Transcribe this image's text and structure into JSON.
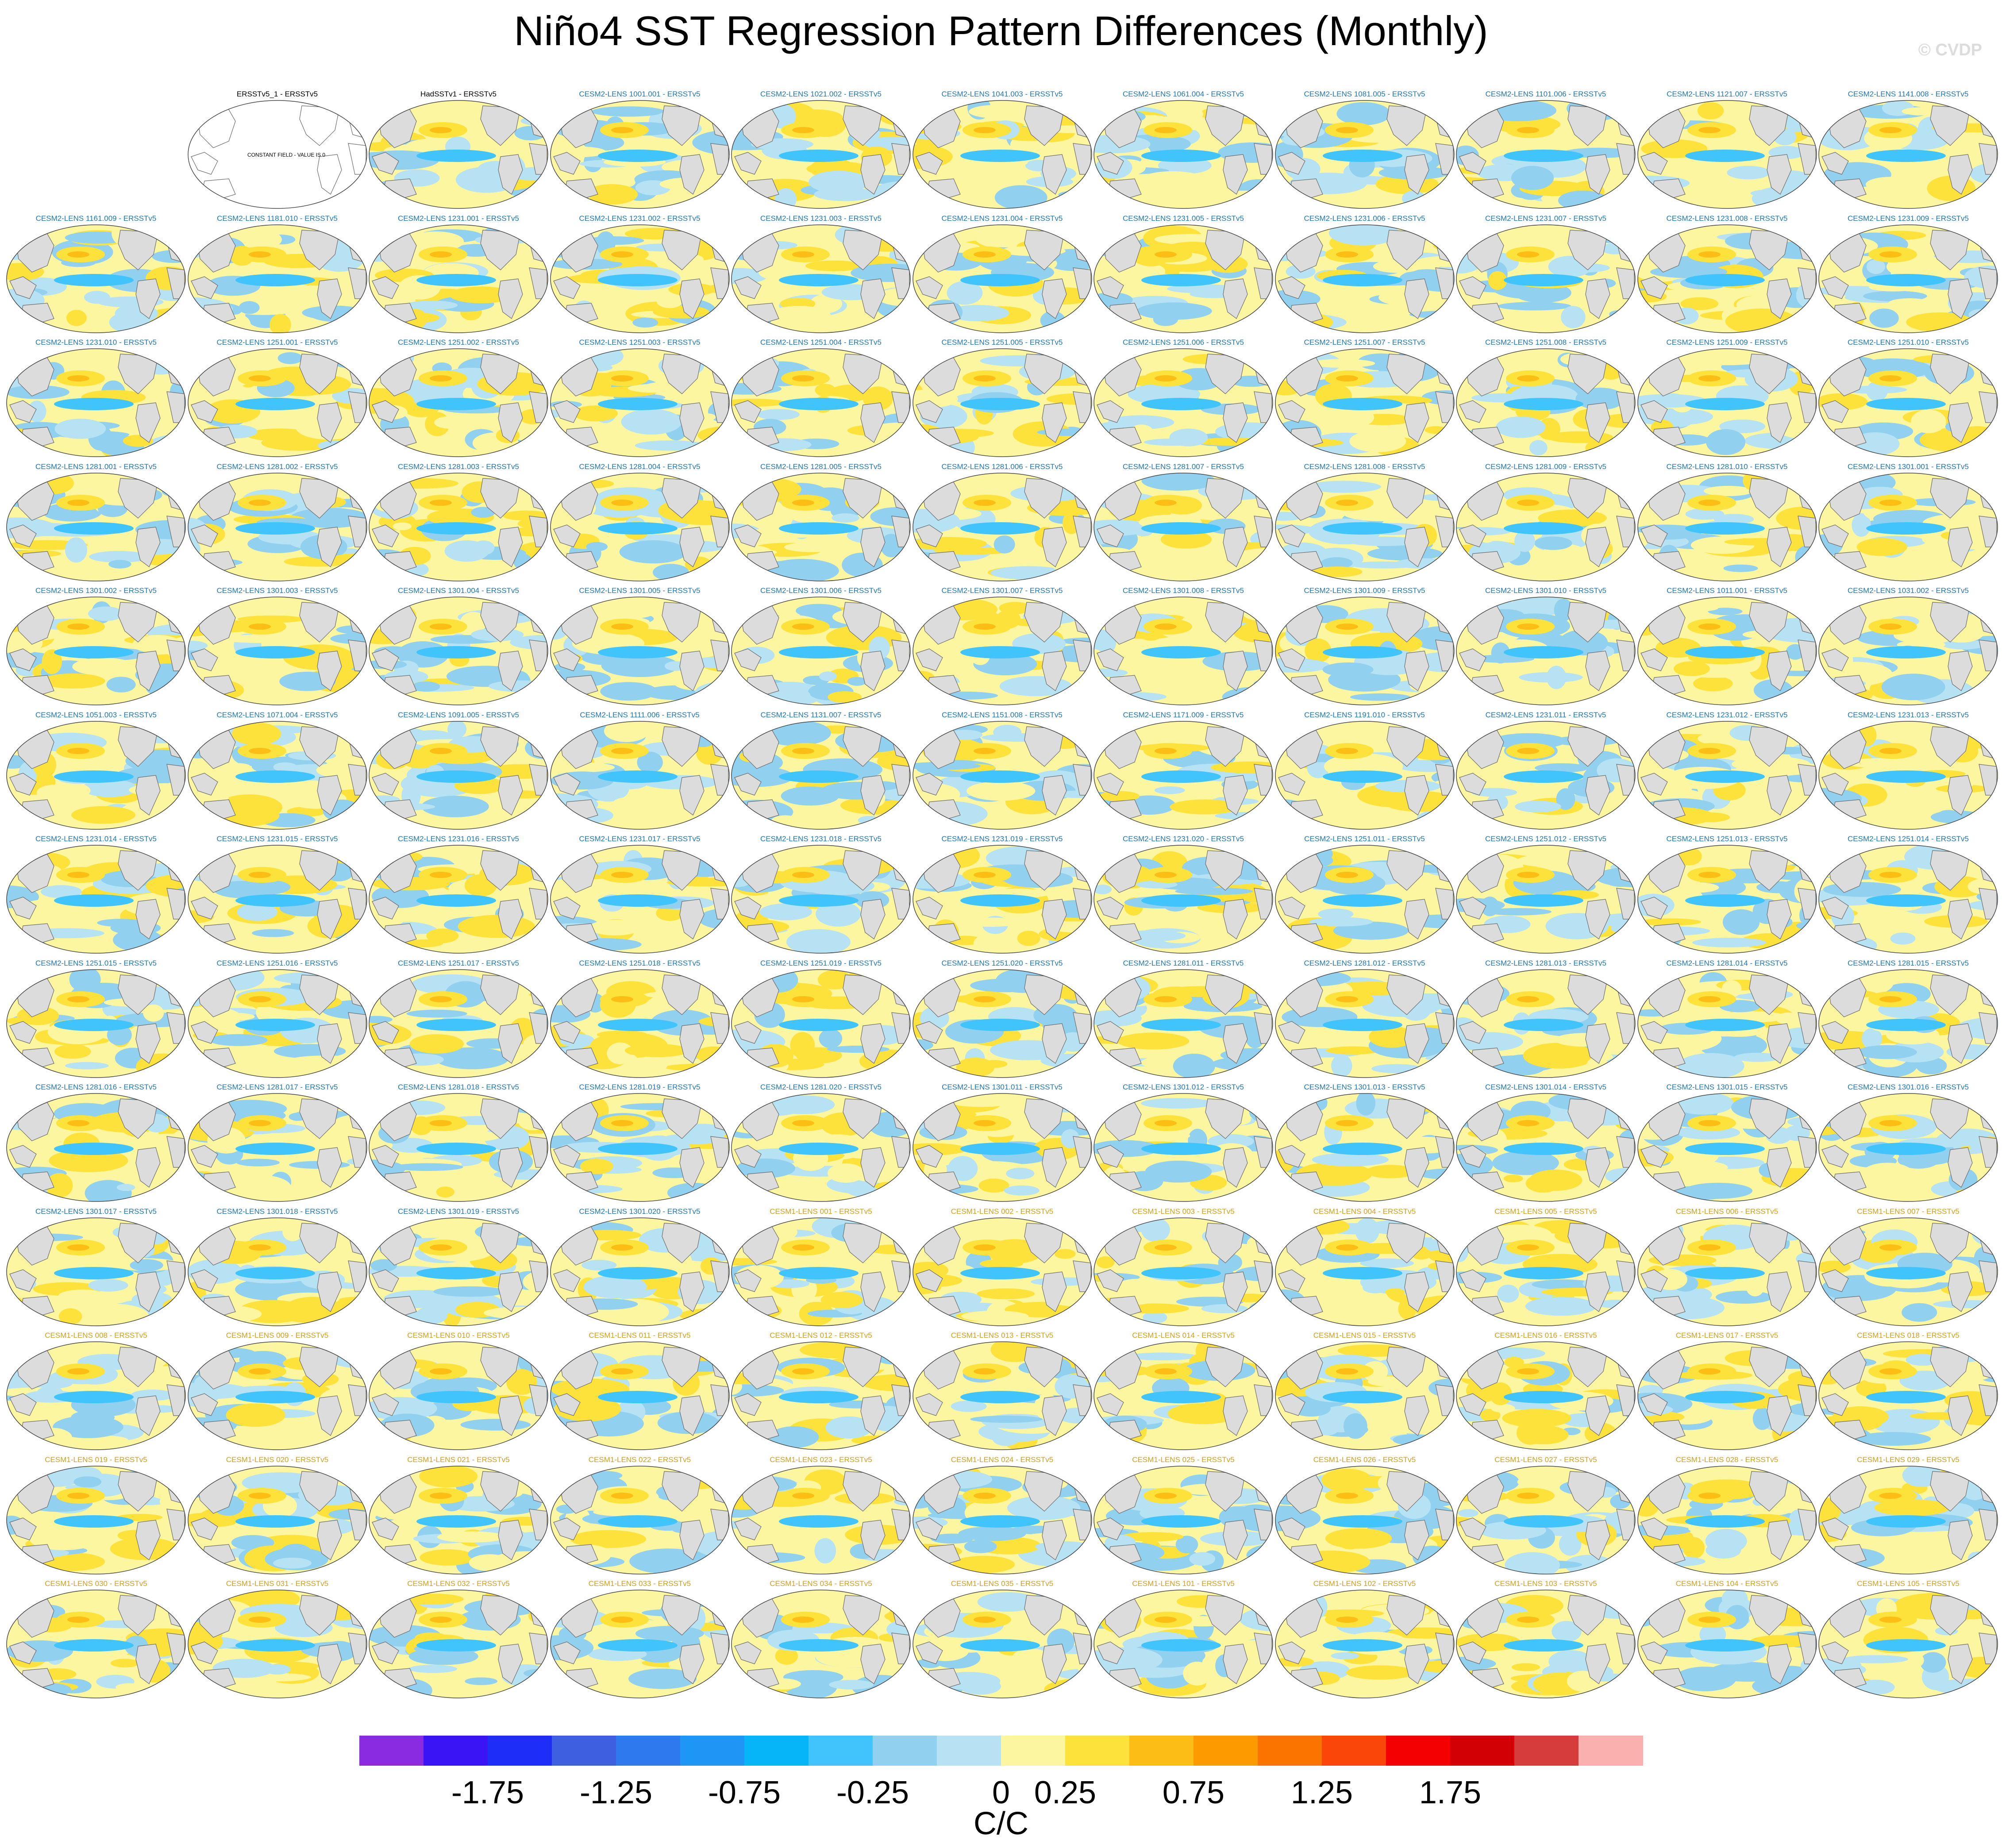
{
  "title": "Niño4 SST Regression Pattern Differences (Monthly)",
  "copyright": "© CVDP",
  "panels": [
    {
      "label": "",
      "group": "blank"
    },
    {
      "label": "ERSSTv5_1 - ERSSTv5",
      "group": "obs",
      "note": "CONSTANT FIELD - VALUE IS 0"
    },
    {
      "label": "HadSSTv1 - ERSSTv5",
      "group": "obs"
    },
    {
      "label": "CESM2-LENS 1001.001 - ERSSTv5",
      "group": "c2"
    },
    {
      "label": "CESM2-LENS 1021.002 - ERSSTv5",
      "group": "c2"
    },
    {
      "label": "CESM2-LENS 1041.003 - ERSSTv5",
      "group": "c2"
    },
    {
      "label": "CESM2-LENS 1061.004 - ERSSTv5",
      "group": "c2"
    },
    {
      "label": "CESM2-LENS 1081.005 - ERSSTv5",
      "group": "c2"
    },
    {
      "label": "CESM2-LENS 1101.006 - ERSSTv5",
      "group": "c2"
    },
    {
      "label": "CESM2-LENS 1121.007 - ERSSTv5",
      "group": "c2"
    },
    {
      "label": "CESM2-LENS 1141.008 - ERSSTv5",
      "group": "c2"
    },
    {
      "label": "CESM2-LENS 1161.009 - ERSSTv5",
      "group": "c2"
    },
    {
      "label": "CESM2-LENS 1181.010 - ERSSTv5",
      "group": "c2"
    },
    {
      "label": "CESM2-LENS 1231.001 - ERSSTv5",
      "group": "c2"
    },
    {
      "label": "CESM2-LENS 1231.002 - ERSSTv5",
      "group": "c2"
    },
    {
      "label": "CESM2-LENS 1231.003 - ERSSTv5",
      "group": "c2"
    },
    {
      "label": "CESM2-LENS 1231.004 - ERSSTv5",
      "group": "c2"
    },
    {
      "label": "CESM2-LENS 1231.005 - ERSSTv5",
      "group": "c2"
    },
    {
      "label": "CESM2-LENS 1231.006 - ERSSTv5",
      "group": "c2"
    },
    {
      "label": "CESM2-LENS 1231.007 - ERSSTv5",
      "group": "c2"
    },
    {
      "label": "CESM2-LENS 1231.008 - ERSSTv5",
      "group": "c2"
    },
    {
      "label": "CESM2-LENS 1231.009 - ERSSTv5",
      "group": "c2"
    },
    {
      "label": "CESM2-LENS 1231.010 - ERSSTv5",
      "group": "c2"
    },
    {
      "label": "CESM2-LENS 1251.001 - ERSSTv5",
      "group": "c2"
    },
    {
      "label": "CESM2-LENS 1251.002 - ERSSTv5",
      "group": "c2"
    },
    {
      "label": "CESM2-LENS 1251.003 - ERSSTv5",
      "group": "c2"
    },
    {
      "label": "CESM2-LENS 1251.004 - ERSSTv5",
      "group": "c2"
    },
    {
      "label": "CESM2-LENS 1251.005 - ERSSTv5",
      "group": "c2"
    },
    {
      "label": "CESM2-LENS 1251.006 - ERSSTv5",
      "group": "c2"
    },
    {
      "label": "CESM2-LENS 1251.007 - ERSSTv5",
      "group": "c2"
    },
    {
      "label": "CESM2-LENS 1251.008 - ERSSTv5",
      "group": "c2"
    },
    {
      "label": "CESM2-LENS 1251.009 - ERSSTv5",
      "group": "c2"
    },
    {
      "label": "CESM2-LENS 1251.010 - ERSSTv5",
      "group": "c2"
    },
    {
      "label": "CESM2-LENS 1281.001 - ERSSTv5",
      "group": "c2"
    },
    {
      "label": "CESM2-LENS 1281.002 - ERSSTv5",
      "group": "c2"
    },
    {
      "label": "CESM2-LENS 1281.003 - ERSSTv5",
      "group": "c2"
    },
    {
      "label": "CESM2-LENS 1281.004 - ERSSTv5",
      "group": "c2"
    },
    {
      "label": "CESM2-LENS 1281.005 - ERSSTv5",
      "group": "c2"
    },
    {
      "label": "CESM2-LENS 1281.006 - ERSSTv5",
      "group": "c2"
    },
    {
      "label": "CESM2-LENS 1281.007 - ERSSTv5",
      "group": "c2"
    },
    {
      "label": "CESM2-LENS 1281.008 - ERSSTv5",
      "group": "c2"
    },
    {
      "label": "CESM2-LENS 1281.009 - ERSSTv5",
      "group": "c2"
    },
    {
      "label": "CESM2-LENS 1281.010 - ERSSTv5",
      "group": "c2"
    },
    {
      "label": "CESM2-LENS 1301.001 - ERSSTv5",
      "group": "c2"
    },
    {
      "label": "CESM2-LENS 1301.002 - ERSSTv5",
      "group": "c2"
    },
    {
      "label": "CESM2-LENS 1301.003 - ERSSTv5",
      "group": "c2"
    },
    {
      "label": "CESM2-LENS 1301.004 - ERSSTv5",
      "group": "c2"
    },
    {
      "label": "CESM2-LENS 1301.005 - ERSSTv5",
      "group": "c2"
    },
    {
      "label": "CESM2-LENS 1301.006 - ERSSTv5",
      "group": "c2"
    },
    {
      "label": "CESM2-LENS 1301.007 - ERSSTv5",
      "group": "c2"
    },
    {
      "label": "CESM2-LENS 1301.008 - ERSSTv5",
      "group": "c2"
    },
    {
      "label": "CESM2-LENS 1301.009 - ERSSTv5",
      "group": "c2"
    },
    {
      "label": "CESM2-LENS 1301.010 - ERSSTv5",
      "group": "c2"
    },
    {
      "label": "CESM2-LENS 1011.001 - ERSSTv5",
      "group": "c2"
    },
    {
      "label": "CESM2-LENS 1031.002 - ERSSTv5",
      "group": "c2"
    },
    {
      "label": "CESM2-LENS 1051.003 - ERSSTv5",
      "group": "c2"
    },
    {
      "label": "CESM2-LENS 1071.004 - ERSSTv5",
      "group": "c2"
    },
    {
      "label": "CESM2-LENS 1091.005 - ERSSTv5",
      "group": "c2"
    },
    {
      "label": "CESM2-LENS 1111.006 - ERSSTv5",
      "group": "c2"
    },
    {
      "label": "CESM2-LENS 1131.007 - ERSSTv5",
      "group": "c2"
    },
    {
      "label": "CESM2-LENS 1151.008 - ERSSTv5",
      "group": "c2"
    },
    {
      "label": "CESM2-LENS 1171.009 - ERSSTv5",
      "group": "c2"
    },
    {
      "label": "CESM2-LENS 1191.010 - ERSSTv5",
      "group": "c2"
    },
    {
      "label": "CESM2-LENS 1231.011 - ERSSTv5",
      "group": "c2"
    },
    {
      "label": "CESM2-LENS 1231.012 - ERSSTv5",
      "group": "c2"
    },
    {
      "label": "CESM2-LENS 1231.013 - ERSSTv5",
      "group": "c2"
    },
    {
      "label": "CESM2-LENS 1231.014 - ERSSTv5",
      "group": "c2"
    },
    {
      "label": "CESM2-LENS 1231.015 - ERSSTv5",
      "group": "c2"
    },
    {
      "label": "CESM2-LENS 1231.016 - ERSSTv5",
      "group": "c2"
    },
    {
      "label": "CESM2-LENS 1231.017 - ERSSTv5",
      "group": "c2"
    },
    {
      "label": "CESM2-LENS 1231.018 - ERSSTv5",
      "group": "c2"
    },
    {
      "label": "CESM2-LENS 1231.019 - ERSSTv5",
      "group": "c2"
    },
    {
      "label": "CESM2-LENS 1231.020 - ERSSTv5",
      "group": "c2"
    },
    {
      "label": "CESM2-LENS 1251.011 - ERSSTv5",
      "group": "c2"
    },
    {
      "label": "CESM2-LENS 1251.012 - ERSSTv5",
      "group": "c2"
    },
    {
      "label": "CESM2-LENS 1251.013 - ERSSTv5",
      "group": "c2"
    },
    {
      "label": "CESM2-LENS 1251.014 - ERSSTv5",
      "group": "c2"
    },
    {
      "label": "CESM2-LENS 1251.015 - ERSSTv5",
      "group": "c2"
    },
    {
      "label": "CESM2-LENS 1251.016 - ERSSTv5",
      "group": "c2"
    },
    {
      "label": "CESM2-LENS 1251.017 - ERSSTv5",
      "group": "c2"
    },
    {
      "label": "CESM2-LENS 1251.018 - ERSSTv5",
      "group": "c2"
    },
    {
      "label": "CESM2-LENS 1251.019 - ERSSTv5",
      "group": "c2"
    },
    {
      "label": "CESM2-LENS 1251.020 - ERSSTv5",
      "group": "c2"
    },
    {
      "label": "CESM2-LENS 1281.011 - ERSSTv5",
      "group": "c2"
    },
    {
      "label": "CESM2-LENS 1281.012 - ERSSTv5",
      "group": "c2"
    },
    {
      "label": "CESM2-LENS 1281.013 - ERSSTv5",
      "group": "c2"
    },
    {
      "label": "CESM2-LENS 1281.014 - ERSSTv5",
      "group": "c2"
    },
    {
      "label": "CESM2-LENS 1281.015 - ERSSTv5",
      "group": "c2"
    },
    {
      "label": "CESM2-LENS 1281.016 - ERSSTv5",
      "group": "c2"
    },
    {
      "label": "CESM2-LENS 1281.017 - ERSSTv5",
      "group": "c2"
    },
    {
      "label": "CESM2-LENS 1281.018 - ERSSTv5",
      "group": "c2"
    },
    {
      "label": "CESM2-LENS 1281.019 - ERSSTv5",
      "group": "c2"
    },
    {
      "label": "CESM2-LENS 1281.020 - ERSSTv5",
      "group": "c2"
    },
    {
      "label": "CESM2-LENS 1301.011 - ERSSTv5",
      "group": "c2"
    },
    {
      "label": "CESM2-LENS 1301.012 - ERSSTv5",
      "group": "c2"
    },
    {
      "label": "CESM2-LENS 1301.013 - ERSSTv5",
      "group": "c2"
    },
    {
      "label": "CESM2-LENS 1301.014 - ERSSTv5",
      "group": "c2"
    },
    {
      "label": "CESM2-LENS 1301.015 - ERSSTv5",
      "group": "c2"
    },
    {
      "label": "CESM2-LENS 1301.016 - ERSSTv5",
      "group": "c2"
    },
    {
      "label": "CESM2-LENS 1301.017 - ERSSTv5",
      "group": "c2"
    },
    {
      "label": "CESM2-LENS 1301.018 - ERSSTv5",
      "group": "c2"
    },
    {
      "label": "CESM2-LENS 1301.019 - ERSSTv5",
      "group": "c2"
    },
    {
      "label": "CESM2-LENS 1301.020 - ERSSTv5",
      "group": "c2"
    },
    {
      "label": "CESM1-LENS 001 - ERSSTv5",
      "group": "c1"
    },
    {
      "label": "CESM1-LENS 002 - ERSSTv5",
      "group": "c1"
    },
    {
      "label": "CESM1-LENS 003 - ERSSTv5",
      "group": "c1"
    },
    {
      "label": "CESM1-LENS 004 - ERSSTv5",
      "group": "c1"
    },
    {
      "label": "CESM1-LENS 005 - ERSSTv5",
      "group": "c1"
    },
    {
      "label": "CESM1-LENS 006 - ERSSTv5",
      "group": "c1"
    },
    {
      "label": "CESM1-LENS 007 - ERSSTv5",
      "group": "c1"
    },
    {
      "label": "CESM1-LENS 008 - ERSSTv5",
      "group": "c1"
    },
    {
      "label": "CESM1-LENS 009 - ERSSTv5",
      "group": "c1"
    },
    {
      "label": "CESM1-LENS 010 - ERSSTv5",
      "group": "c1"
    },
    {
      "label": "CESM1-LENS 011 - ERSSTv5",
      "group": "c1"
    },
    {
      "label": "CESM1-LENS 012 - ERSSTv5",
      "group": "c1"
    },
    {
      "label": "CESM1-LENS 013 - ERSSTv5",
      "group": "c1"
    },
    {
      "label": "CESM1-LENS 014 - ERSSTv5",
      "group": "c1"
    },
    {
      "label": "CESM1-LENS 015 - ERSSTv5",
      "group": "c1"
    },
    {
      "label": "CESM1-LENS 016 - ERSSTv5",
      "group": "c1"
    },
    {
      "label": "CESM1-LENS 017 - ERSSTv5",
      "group": "c1"
    },
    {
      "label": "CESM1-LENS 018 - ERSSTv5",
      "group": "c1"
    },
    {
      "label": "CESM1-LENS 019 - ERSSTv5",
      "group": "c1"
    },
    {
      "label": "CESM1-LENS 020 - ERSSTv5",
      "group": "c1"
    },
    {
      "label": "CESM1-LENS 021 - ERSSTv5",
      "group": "c1"
    },
    {
      "label": "CESM1-LENS 022 - ERSSTv5",
      "group": "c1"
    },
    {
      "label": "CESM1-LENS 023 - ERSSTv5",
      "group": "c1"
    },
    {
      "label": "CESM1-LENS 024 - ERSSTv5",
      "group": "c1"
    },
    {
      "label": "CESM1-LENS 025 - ERSSTv5",
      "group": "c1"
    },
    {
      "label": "CESM1-LENS 026 - ERSSTv5",
      "group": "c1"
    },
    {
      "label": "CESM1-LENS 027 - ERSSTv5",
      "group": "c1"
    },
    {
      "label": "CESM1-LENS 028 - ERSSTv5",
      "group": "c1"
    },
    {
      "label": "CESM1-LENS 029 - ERSSTv5",
      "group": "c1"
    },
    {
      "label": "CESM1-LENS 030 - ERSSTv5",
      "group": "c1"
    },
    {
      "label": "CESM1-LENS 031 - ERSSTv5",
      "group": "c1"
    },
    {
      "label": "CESM1-LENS 032 - ERSSTv5",
      "group": "c1"
    },
    {
      "label": "CESM1-LENS 033 - ERSSTv5",
      "group": "c1"
    },
    {
      "label": "CESM1-LENS 034 - ERSSTv5",
      "group": "c1"
    },
    {
      "label": "CESM1-LENS 035 - ERSSTv5",
      "group": "c1"
    },
    {
      "label": "CESM1-LENS 101 - ERSSTv5",
      "group": "c1"
    },
    {
      "label": "CESM1-LENS 102 - ERSSTv5",
      "group": "c1"
    },
    {
      "label": "CESM1-LENS 103 - ERSSTv5",
      "group": "c1"
    },
    {
      "label": "CESM1-LENS 104 - ERSSTv5",
      "group": "c1"
    },
    {
      "label": "CESM1-LENS 105 - ERSSTv5",
      "group": "c1"
    }
  ],
  "colorbar": {
    "colors": [
      "#8a2be2",
      "#3b14f5",
      "#1e2ef7",
      "#3d5fe0",
      "#2f79ef",
      "#1e96f5",
      "#06b4f8",
      "#40c4fb",
      "#92d0ef",
      "#b7e2f4",
      "#fdf6a0",
      "#fde23c",
      "#fcbd14",
      "#fc9a00",
      "#fc7400",
      "#fa4608",
      "#f50000",
      "#d20004",
      "#d73c3c",
      "#fbb0b0"
    ],
    "tick_labels": [
      "-1.75",
      "-1.25",
      "-0.75",
      "-0.25",
      "0",
      "0.25",
      "0.75",
      "1.25",
      "1.75"
    ],
    "units": "C/C"
  }
}
